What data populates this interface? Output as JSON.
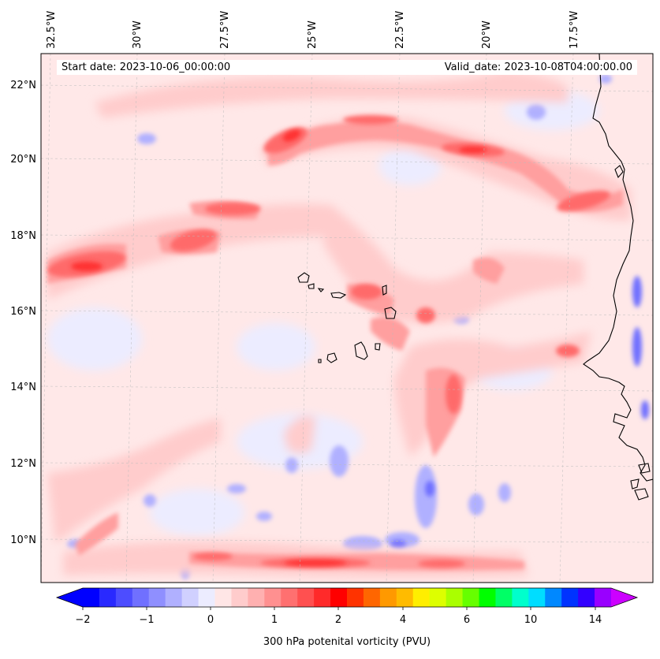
{
  "header": {
    "start_date": "Start date: 2023-10-06_00:00:00",
    "valid_date": "Valid_date: 2023-10-08T04:00:00.00"
  },
  "lon_labels": [
    "32.5°W",
    "30°W",
    "27.5°W",
    "25°W",
    "22.5°W",
    "20°W",
    "17.5°W"
  ],
  "lat_labels": [
    "22°N",
    "20°N",
    "18°N",
    "16°N",
    "14°N",
    "12°N",
    "10°N"
  ],
  "colorbar": {
    "label": "300 hPa potenital vorticity (PVU)",
    "ticks": [
      "−2",
      "−1",
      "0",
      "1",
      "2",
      "4",
      "6",
      "10",
      "14"
    ],
    "colors": [
      "#0000ff",
      "#2929ff",
      "#4d4dff",
      "#7070ff",
      "#8f8fff",
      "#b0b0ff",
      "#d0d0ff",
      "#ececff",
      "#ffe6e6",
      "#ffcccc",
      "#ffb0b0",
      "#ff9090",
      "#ff7070",
      "#ff5050",
      "#ff2a2a",
      "#ff0000",
      "#ff3300",
      "#ff6600",
      "#ff9900",
      "#ffbb00",
      "#ffee00",
      "#ddff00",
      "#aaff00",
      "#66ff00",
      "#00ff00",
      "#00ff66",
      "#00ffcc",
      "#00ddff",
      "#0088ff",
      "#0033ff",
      "#3300ff",
      "#9900ff"
    ],
    "under_color": "#0000ff",
    "over_color": "#cc00ff"
  }
}
